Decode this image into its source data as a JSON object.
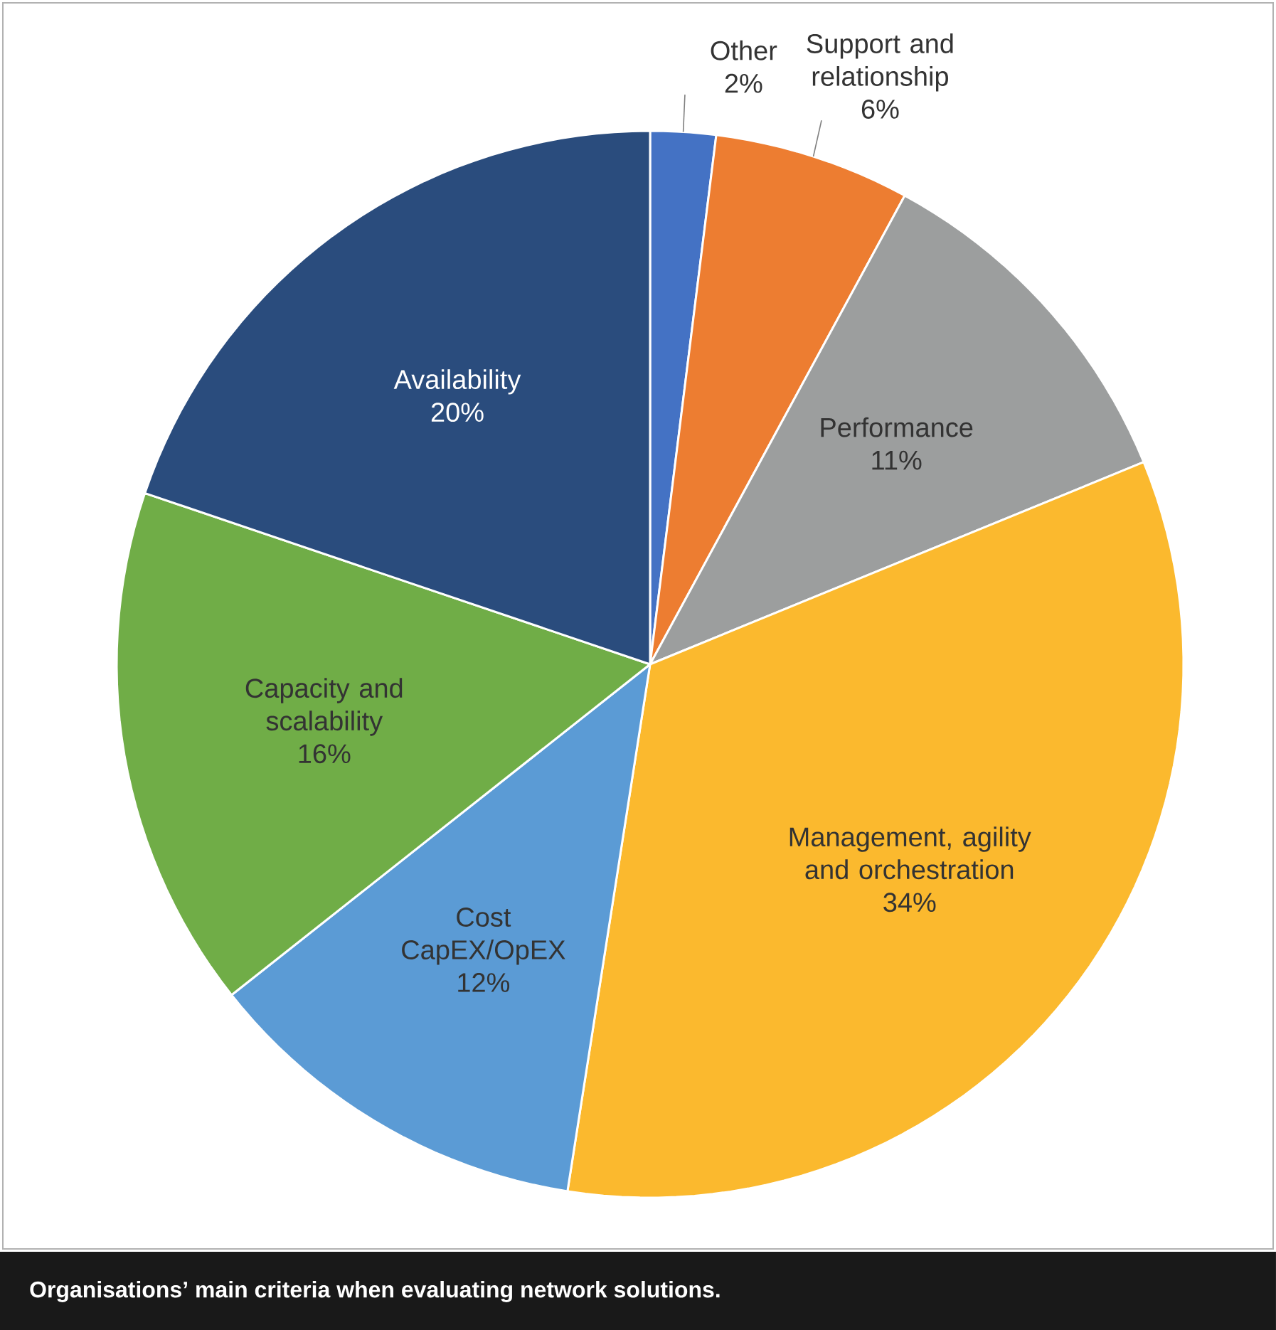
{
  "chart_data": {
    "type": "pie",
    "categories": [
      "Other",
      "Support and relationship",
      "Performance",
      "Management, agility and orchestration",
      "Cost CapEX/OpEX",
      "Capacity and scalability",
      "Availability"
    ],
    "values": [
      2,
      6,
      11,
      34,
      12,
      16,
      20
    ],
    "value_labels": [
      "2%",
      "6%",
      "11%",
      "34%",
      "12%",
      "16%",
      "20%"
    ],
    "colors": [
      "#4472c4",
      "#ed7d31",
      "#9c9e9e",
      "#fbb92e",
      "#5b9bd5",
      "#70ad47",
      "#2a4c7d"
    ],
    "annotations": [
      "Organisations’ main criteria when evaluating network solutions."
    ]
  }
}
